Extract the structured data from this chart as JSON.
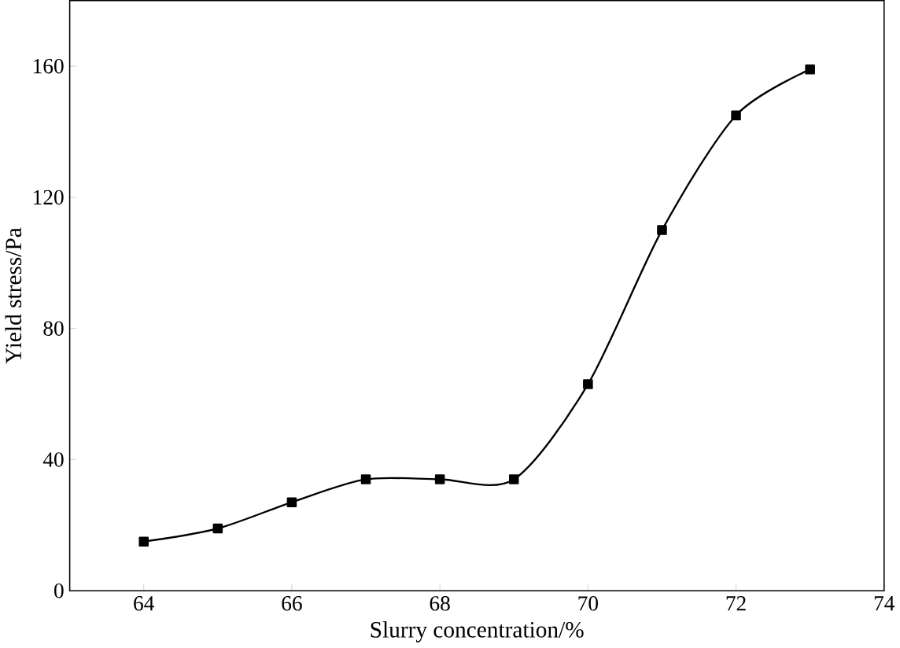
{
  "chart_data": {
    "type": "line",
    "xlabel": "Slurry concentration/%",
    "ylabel": "Yield stress/Pa",
    "x": [
      64,
      65,
      66,
      67,
      68,
      69,
      70,
      71,
      72,
      73
    ],
    "series": [
      {
        "color": "#000000",
        "values": [
          15,
          19,
          27,
          34,
          34,
          34,
          63,
          110,
          145,
          159
        ]
      }
    ],
    "marker": "square",
    "line_style": "solid",
    "xlim": [
      63,
      74
    ],
    "xticks": [
      64,
      66,
      68,
      70,
      72,
      74
    ],
    "ylim": [
      0,
      180
    ],
    "yticks": [
      0,
      40,
      80,
      120,
      160
    ]
  }
}
